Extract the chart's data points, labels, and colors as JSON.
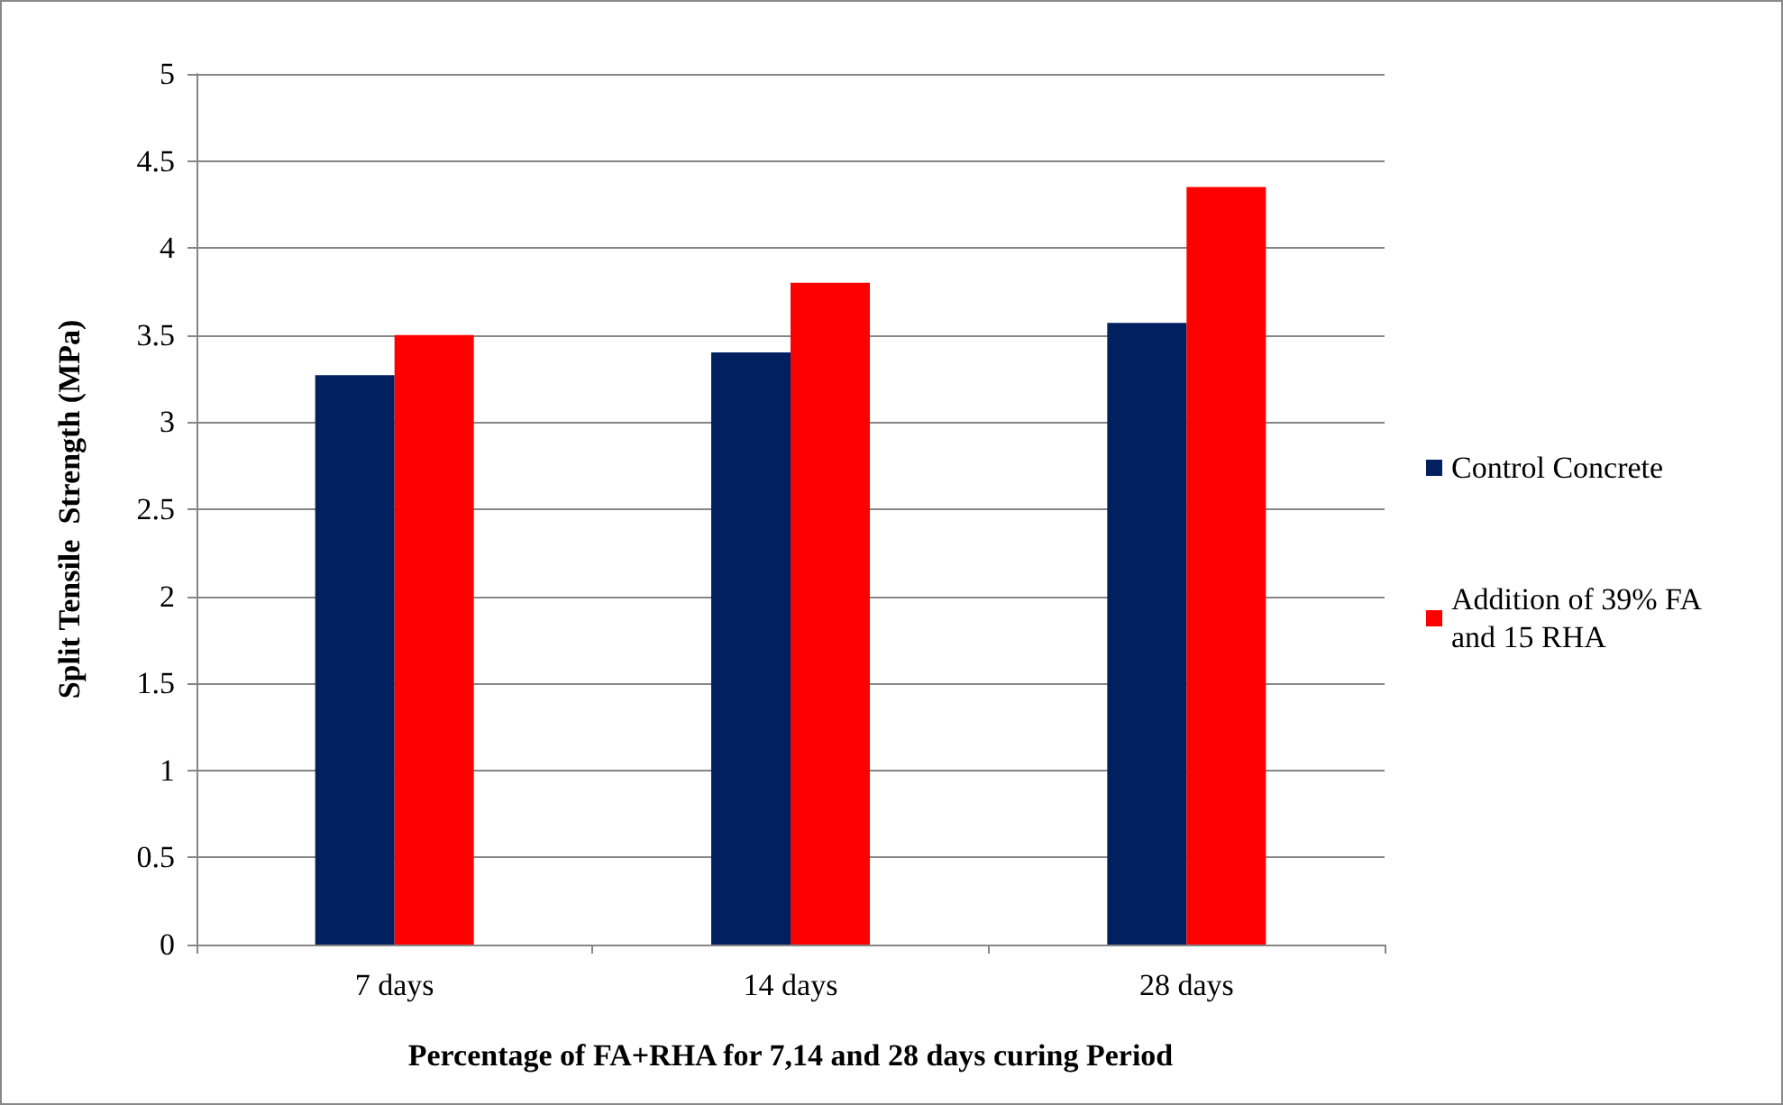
{
  "chart_data": {
    "type": "bar",
    "xlabel": "Percentage of FA+RHA for 7,14 and 28 days curing Period",
    "ylabel": "Split Tensile  Strength (MPa)",
    "categories": [
      "7 days",
      "14 days",
      "28 days"
    ],
    "series": [
      {
        "name": "Control Concrete",
        "color": "#002060",
        "values": [
          3.27,
          3.4,
          3.57
        ]
      },
      {
        "name": "Addition of 39% FA\nand 15 RHA",
        "color": "#ff0000",
        "values": [
          3.5,
          3.8,
          4.35
        ]
      }
    ],
    "ylim": [
      0,
      5
    ],
    "yticks": [
      0,
      0.5,
      1,
      1.5,
      2,
      2.5,
      3,
      3.5,
      4,
      4.5,
      5
    ],
    "grid": "y",
    "legend": "right"
  }
}
